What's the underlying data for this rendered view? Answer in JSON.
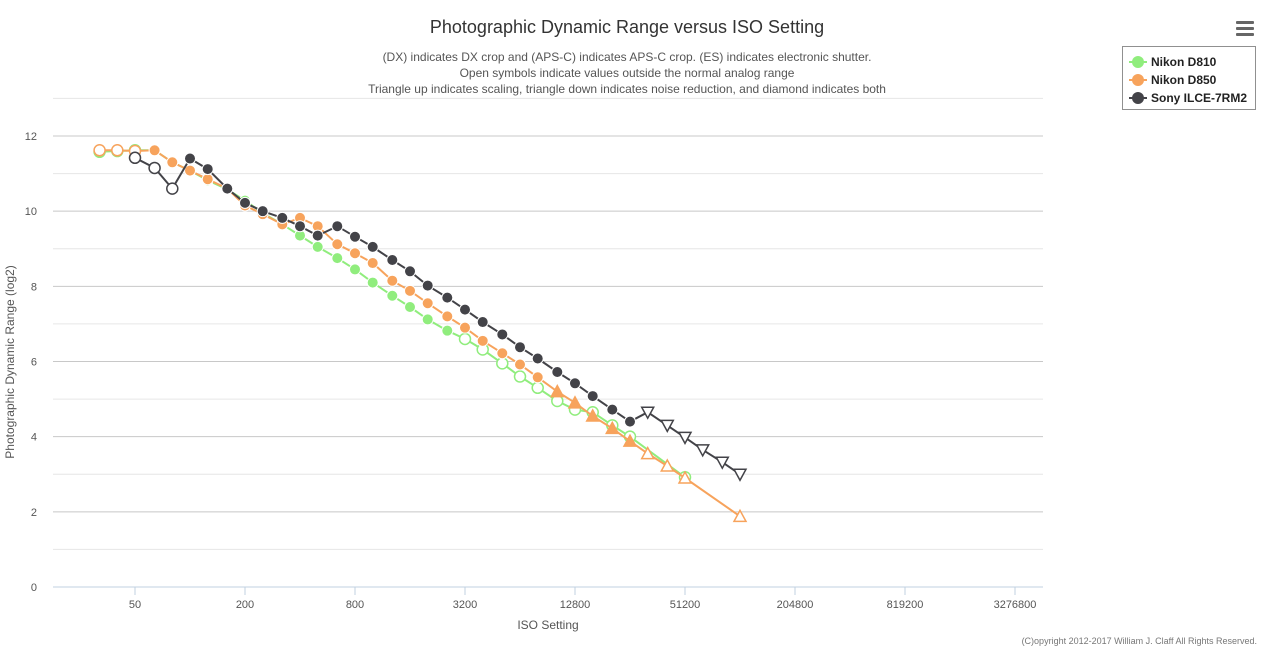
{
  "chart_data": {
    "type": "line",
    "title": "Photographic Dynamic Range versus ISO Setting",
    "subtitle": [
      "(DX) indicates DX crop and (APS-C) indicates APS-C crop. (ES) indicates electronic shutter.",
      "Open symbols indicate values outside the normal analog range",
      "Triangle up indicates scaling, triangle down indicates noise reduction, and diamond indicates both"
    ],
    "xlabel": "ISO Setting",
    "ylabel": "Photographic Dynamic Range (log2)",
    "x_scale": "log2",
    "xlim": [
      20,
      6000000
    ],
    "ylim": [
      0,
      13
    ],
    "x_ticks": [
      50,
      200,
      800,
      3200,
      12800,
      51200,
      204800,
      819200,
      3276800
    ],
    "y_ticks": [
      0,
      2,
      4,
      6,
      8,
      10,
      12
    ],
    "grid": true,
    "legend_position": "top-right",
    "credit": "(C)opyright 2012-2017 William J. Claff All Rights Reserved.",
    "series": [
      {
        "name": "Nikon D810",
        "color": "#90ed7d",
        "points": [
          {
            "x": 32,
            "y": 11.58,
            "m": "open"
          },
          {
            "x": 40,
            "y": 11.6,
            "m": "open"
          },
          {
            "x": 50,
            "y": 11.62,
            "m": "open"
          },
          {
            "x": 64,
            "y": 11.62,
            "m": "filled"
          },
          {
            "x": 80,
            "y": 11.3,
            "m": "filled"
          },
          {
            "x": 100,
            "y": 11.08,
            "m": "filled"
          },
          {
            "x": 125,
            "y": 10.82,
            "m": "filled"
          },
          {
            "x": 160,
            "y": 10.58,
            "m": "filled"
          },
          {
            "x": 200,
            "y": 10.28,
            "m": "filled"
          },
          {
            "x": 250,
            "y": 9.95,
            "m": "filled"
          },
          {
            "x": 320,
            "y": 9.65,
            "m": "filled"
          },
          {
            "x": 400,
            "y": 9.35,
            "m": "filled"
          },
          {
            "x": 500,
            "y": 9.05,
            "m": "filled"
          },
          {
            "x": 640,
            "y": 8.75,
            "m": "filled"
          },
          {
            "x": 800,
            "y": 8.45,
            "m": "filled"
          },
          {
            "x": 1000,
            "y": 8.1,
            "m": "filled"
          },
          {
            "x": 1280,
            "y": 7.75,
            "m": "filled"
          },
          {
            "x": 1600,
            "y": 7.45,
            "m": "filled"
          },
          {
            "x": 2000,
            "y": 7.12,
            "m": "filled"
          },
          {
            "x": 2560,
            "y": 6.82,
            "m": "filled"
          },
          {
            "x": 3200,
            "y": 6.6,
            "m": "open"
          },
          {
            "x": 4000,
            "y": 6.32,
            "m": "open"
          },
          {
            "x": 5120,
            "y": 5.95,
            "m": "open"
          },
          {
            "x": 6400,
            "y": 5.6,
            "m": "open"
          },
          {
            "x": 8000,
            "y": 5.3,
            "m": "open"
          },
          {
            "x": 10240,
            "y": 4.95,
            "m": "open"
          },
          {
            "x": 12800,
            "y": 4.72,
            "m": "open"
          },
          {
            "x": 16000,
            "y": 4.65,
            "m": "open"
          },
          {
            "x": 20480,
            "y": 4.3,
            "m": "open"
          },
          {
            "x": 25600,
            "y": 4.0,
            "m": "open"
          },
          {
            "x": 51200,
            "y": 2.92,
            "m": "open"
          }
        ]
      },
      {
        "name": "Nikon D850",
        "color": "#f7a35c",
        "points": [
          {
            "x": 32,
            "y": 11.62,
            "m": "open"
          },
          {
            "x": 40,
            "y": 11.62,
            "m": "open"
          },
          {
            "x": 50,
            "y": 11.6,
            "m": "open"
          },
          {
            "x": 64,
            "y": 11.62,
            "m": "filled"
          },
          {
            "x": 80,
            "y": 11.3,
            "m": "filled"
          },
          {
            "x": 100,
            "y": 11.08,
            "m": "filled"
          },
          {
            "x": 125,
            "y": 10.85,
            "m": "filled"
          },
          {
            "x": 160,
            "y": 10.6,
            "m": "filled"
          },
          {
            "x": 200,
            "y": 10.15,
            "m": "filled"
          },
          {
            "x": 250,
            "y": 9.92,
            "m": "filled"
          },
          {
            "x": 320,
            "y": 9.65,
            "m": "filled"
          },
          {
            "x": 400,
            "y": 9.82,
            "m": "filled"
          },
          {
            "x": 500,
            "y": 9.6,
            "m": "filled"
          },
          {
            "x": 640,
            "y": 9.12,
            "m": "filled"
          },
          {
            "x": 800,
            "y": 8.88,
            "m": "filled"
          },
          {
            "x": 1000,
            "y": 8.62,
            "m": "filled"
          },
          {
            "x": 1280,
            "y": 8.15,
            "m": "filled"
          },
          {
            "x": 1600,
            "y": 7.88,
            "m": "filled"
          },
          {
            "x": 2000,
            "y": 7.55,
            "m": "filled"
          },
          {
            "x": 2560,
            "y": 7.2,
            "m": "filled"
          },
          {
            "x": 3200,
            "y": 6.9,
            "m": "filled"
          },
          {
            "x": 4000,
            "y": 6.55,
            "m": "filled"
          },
          {
            "x": 5120,
            "y": 6.22,
            "m": "filled"
          },
          {
            "x": 6400,
            "y": 5.92,
            "m": "filled"
          },
          {
            "x": 8000,
            "y": 5.58,
            "m": "filled"
          },
          {
            "x": 10240,
            "y": 5.2,
            "m": "tri-up-filled"
          },
          {
            "x": 12800,
            "y": 4.9,
            "m": "tri-up-filled"
          },
          {
            "x": 16000,
            "y": 4.55,
            "m": "tri-up-filled"
          },
          {
            "x": 20480,
            "y": 4.22,
            "m": "tri-up-filled"
          },
          {
            "x": 25600,
            "y": 3.88,
            "m": "tri-up-filled"
          },
          {
            "x": 32000,
            "y": 3.55,
            "m": "tri-up-open"
          },
          {
            "x": 40960,
            "y": 3.22,
            "m": "tri-up-open"
          },
          {
            "x": 51200,
            "y": 2.9,
            "m": "tri-up-open"
          },
          {
            "x": 102400,
            "y": 1.88,
            "m": "tri-up-open"
          }
        ]
      },
      {
        "name": "Sony ILCE-7RM2",
        "color": "#434348",
        "points": [
          {
            "x": 50,
            "y": 11.42,
            "m": "open"
          },
          {
            "x": 64,
            "y": 11.15,
            "m": "open"
          },
          {
            "x": 80,
            "y": 10.6,
            "m": "open"
          },
          {
            "x": 100,
            "y": 11.4,
            "m": "filled"
          },
          {
            "x": 125,
            "y": 11.12,
            "m": "filled"
          },
          {
            "x": 160,
            "y": 10.6,
            "m": "filled"
          },
          {
            "x": 200,
            "y": 10.22,
            "m": "filled"
          },
          {
            "x": 250,
            "y": 10.0,
            "m": "filled"
          },
          {
            "x": 320,
            "y": 9.82,
            "m": "filled"
          },
          {
            "x": 400,
            "y": 9.6,
            "m": "filled"
          },
          {
            "x": 500,
            "y": 9.35,
            "m": "filled"
          },
          {
            "x": 640,
            "y": 9.6,
            "m": "filled"
          },
          {
            "x": 800,
            "y": 9.32,
            "m": "filled"
          },
          {
            "x": 1000,
            "y": 9.05,
            "m": "filled"
          },
          {
            "x": 1280,
            "y": 8.7,
            "m": "filled"
          },
          {
            "x": 1600,
            "y": 8.4,
            "m": "filled"
          },
          {
            "x": 2000,
            "y": 8.02,
            "m": "filled"
          },
          {
            "x": 2560,
            "y": 7.7,
            "m": "filled"
          },
          {
            "x": 3200,
            "y": 7.38,
            "m": "filled"
          },
          {
            "x": 4000,
            "y": 7.05,
            "m": "filled"
          },
          {
            "x": 5120,
            "y": 6.72,
            "m": "filled"
          },
          {
            "x": 6400,
            "y": 6.38,
            "m": "filled"
          },
          {
            "x": 8000,
            "y": 6.08,
            "m": "filled"
          },
          {
            "x": 10240,
            "y": 5.72,
            "m": "filled"
          },
          {
            "x": 12800,
            "y": 5.42,
            "m": "filled"
          },
          {
            "x": 16000,
            "y": 5.08,
            "m": "filled"
          },
          {
            "x": 20480,
            "y": 4.72,
            "m": "filled"
          },
          {
            "x": 25600,
            "y": 4.4,
            "m": "filled"
          },
          {
            "x": 32000,
            "y": 4.65,
            "m": "tri-down-open"
          },
          {
            "x": 40960,
            "y": 4.3,
            "m": "tri-down-open"
          },
          {
            "x": 51200,
            "y": 3.98,
            "m": "tri-down-open"
          },
          {
            "x": 64000,
            "y": 3.65,
            "m": "tri-down-open"
          },
          {
            "x": 81920,
            "y": 3.32,
            "m": "tri-down-open"
          },
          {
            "x": 102400,
            "y": 3.0,
            "m": "tri-down-open"
          }
        ]
      }
    ]
  }
}
